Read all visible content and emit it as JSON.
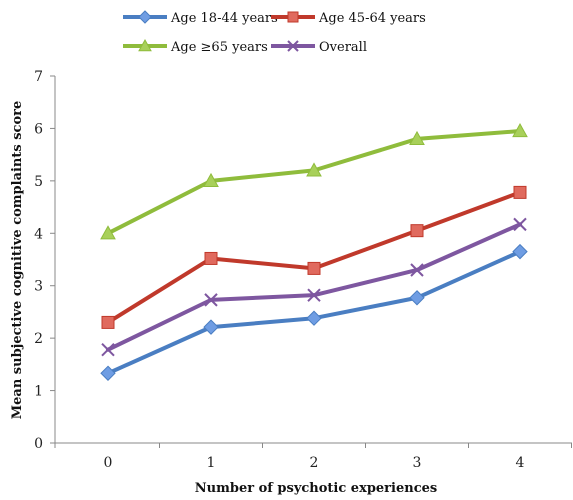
{
  "chart_data": {
    "type": "line",
    "title": "",
    "xlabel": "Number of psychotic experiences",
    "ylabel": "Mean subjective cognitive complaints score",
    "x": [
      0,
      1,
      2,
      3,
      4
    ],
    "x_tick_labels": [
      "0",
      "1",
      "2",
      "3",
      "4"
    ],
    "ylim": [
      0,
      7
    ],
    "y_ticks": [
      0,
      1,
      2,
      3,
      4,
      5,
      6,
      7
    ],
    "y_tick_labels": [
      "0",
      "1",
      "2",
      "3",
      "4",
      "5",
      "6",
      "7"
    ],
    "grid": false,
    "legend_placement": "top",
    "series": [
      {
        "name": "Age 18-44 years",
        "values": [
          1.33,
          2.21,
          2.38,
          2.77,
          3.65
        ],
        "color": "#4a7ec2",
        "marker": "diamond",
        "marker_fill": "#6f9de3"
      },
      {
        "name": "Age 45-64 years",
        "values": [
          2.3,
          3.52,
          3.33,
          4.05,
          4.78
        ],
        "color": "#c0392b",
        "marker": "square",
        "marker_fill": "#e06a5e"
      },
      {
        "name": "Age ≥65 years",
        "values": [
          4.0,
          5.0,
          5.2,
          5.8,
          5.95
        ],
        "color": "#8fbc3c",
        "marker": "triangle",
        "marker_fill": "#a8d05a"
      },
      {
        "name": "Overall",
        "values": [
          1.78,
          2.73,
          2.82,
          3.3,
          4.17
        ],
        "color": "#7e57a0",
        "marker": "x",
        "marker_fill": "#7e57a0"
      }
    ]
  }
}
